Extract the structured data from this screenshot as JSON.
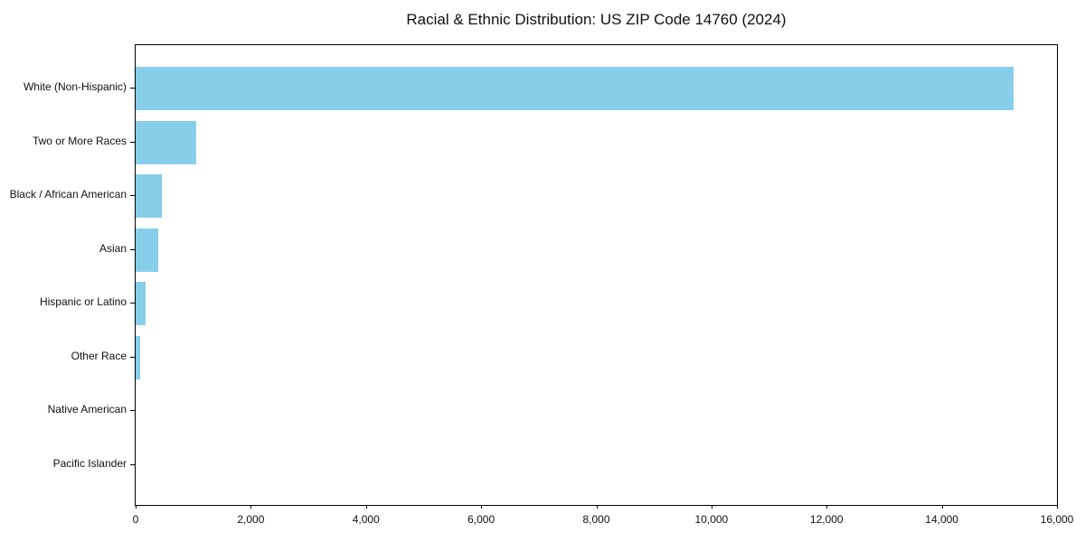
{
  "chart_data": {
    "type": "bar",
    "orientation": "horizontal",
    "title": "Racial & Ethnic Distribution: US ZIP Code 14760 (2024)",
    "xlabel": "",
    "ylabel": "",
    "categories": [
      "White (Non-Hispanic)",
      "Two or More Races",
      "Black / African American",
      "Asian",
      "Hispanic or Latino",
      "Other Race",
      "Native American",
      "Pacific Islander"
    ],
    "values": [
      15250,
      1050,
      460,
      390,
      165,
      75,
      0,
      0
    ],
    "xlim": [
      0,
      16000
    ],
    "x_ticks": [
      0,
      2000,
      4000,
      6000,
      8000,
      10000,
      12000,
      14000,
      16000
    ],
    "x_tick_labels": [
      "0",
      "2,000",
      "4,000",
      "6,000",
      "8,000",
      "10,000",
      "12,000",
      "14,000",
      "16,000"
    ],
    "bar_color": "#87CEEB",
    "axis_color": "#000000",
    "background_color": "#ffffff",
    "grid": false,
    "legend": false
  }
}
